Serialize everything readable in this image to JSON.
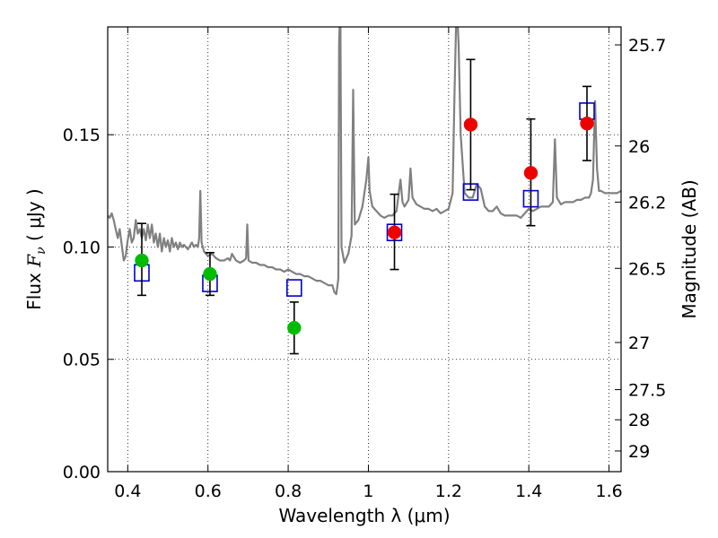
{
  "chart_data": {
    "type": "scatter",
    "xlabel": "Wavelength  λ (μm)",
    "ylabel_prefix": "Flux  ",
    "ylabel_symbol": "F",
    "ylabel_sub": "ν",
    "ylabel_unit": "  ( μJy )",
    "y2label": "Magnitude (AB)",
    "xlim": [
      0.35,
      1.63
    ],
    "ylim": [
      0.0,
      0.198
    ],
    "grid": true,
    "x_ticks": [
      {
        "value": 0.4,
        "label": "0.4"
      },
      {
        "value": 0.6,
        "label": "0.6"
      },
      {
        "value": 0.8,
        "label": "0.8"
      },
      {
        "value": 1.0,
        "label": "1"
      },
      {
        "value": 1.2,
        "label": "1.2"
      },
      {
        "value": 1.4,
        "label": "1.4"
      },
      {
        "value": 1.6,
        "label": "1.6"
      }
    ],
    "y_ticks": [
      {
        "value": 0.0,
        "label": "0.00"
      },
      {
        "value": 0.05,
        "label": "0.05"
      },
      {
        "value": 0.1,
        "label": "0.10"
      },
      {
        "value": 0.15,
        "label": "0.15"
      }
    ],
    "y2_ticks": [
      {
        "flux": 0.19,
        "label": "25.7"
      },
      {
        "flux": 0.145,
        "label": "26"
      },
      {
        "flux": 0.12,
        "label": "26.2"
      },
      {
        "flux": 0.0905,
        "label": "26.5"
      },
      {
        "flux": 0.0575,
        "label": "27"
      },
      {
        "flux": 0.0365,
        "label": "27.5"
      },
      {
        "flux": 0.0231,
        "label": "28"
      },
      {
        "flux": 0.0092,
        "label": "29"
      }
    ],
    "series": [
      {
        "name": "model-spectrum",
        "kind": "line",
        "color": "#808080",
        "points": [
          [
            0.35,
            0.114
          ],
          [
            0.355,
            0.113
          ],
          [
            0.36,
            0.115
          ],
          [
            0.365,
            0.112
          ],
          [
            0.37,
            0.108
          ],
          [
            0.375,
            0.104
          ],
          [
            0.38,
            0.108
          ],
          [
            0.385,
            0.101
          ],
          [
            0.39,
            0.094
          ],
          [
            0.395,
            0.096
          ],
          [
            0.4,
            0.103
          ],
          [
            0.405,
            0.108
          ],
          [
            0.41,
            0.102
          ],
          [
            0.415,
            0.104
          ],
          [
            0.42,
            0.112
          ],
          [
            0.425,
            0.106
          ],
          [
            0.43,
            0.108
          ],
          [
            0.435,
            0.104
          ],
          [
            0.44,
            0.108
          ],
          [
            0.445,
            0.103
          ],
          [
            0.45,
            0.11
          ],
          [
            0.455,
            0.104
          ],
          [
            0.46,
            0.11
          ],
          [
            0.465,
            0.102
          ],
          [
            0.47,
            0.106
          ],
          [
            0.475,
            0.1
          ],
          [
            0.48,
            0.106
          ],
          [
            0.485,
            0.098
          ],
          [
            0.49,
            0.104
          ],
          [
            0.495,
            0.1
          ],
          [
            0.5,
            0.103
          ],
          [
            0.505,
            0.098
          ],
          [
            0.51,
            0.104
          ],
          [
            0.515,
            0.1
          ],
          [
            0.52,
            0.102
          ],
          [
            0.525,
            0.099
          ],
          [
            0.53,
            0.102
          ],
          [
            0.535,
            0.1
          ],
          [
            0.54,
            0.101
          ],
          [
            0.55,
            0.099
          ],
          [
            0.56,
            0.102
          ],
          [
            0.565,
            0.1
          ],
          [
            0.57,
            0.101
          ],
          [
            0.575,
            0.1
          ],
          [
            0.578,
            0.104
          ],
          [
            0.581,
            0.125
          ],
          [
            0.584,
            0.102
          ],
          [
            0.59,
            0.098
          ],
          [
            0.6,
            0.096
          ],
          [
            0.61,
            0.097
          ],
          [
            0.62,
            0.095
          ],
          [
            0.63,
            0.094
          ],
          [
            0.64,
            0.094
          ],
          [
            0.65,
            0.095
          ],
          [
            0.655,
            0.094
          ],
          [
            0.66,
            0.097
          ],
          [
            0.663,
            0.096
          ],
          [
            0.67,
            0.094
          ],
          [
            0.68,
            0.093
          ],
          [
            0.69,
            0.094
          ],
          [
            0.695,
            0.095
          ],
          [
            0.698,
            0.11
          ],
          [
            0.701,
            0.094
          ],
          [
            0.71,
            0.093
          ],
          [
            0.72,
            0.093
          ],
          [
            0.73,
            0.092
          ],
          [
            0.74,
            0.092
          ],
          [
            0.75,
            0.091
          ],
          [
            0.76,
            0.091
          ],
          [
            0.77,
            0.09
          ],
          [
            0.78,
            0.09
          ],
          [
            0.79,
            0.089
          ],
          [
            0.8,
            0.09
          ],
          [
            0.81,
            0.089
          ],
          [
            0.82,
            0.088
          ],
          [
            0.83,
            0.088
          ],
          [
            0.84,
            0.087
          ],
          [
            0.85,
            0.087
          ],
          [
            0.86,
            0.086
          ],
          [
            0.87,
            0.085
          ],
          [
            0.88,
            0.085
          ],
          [
            0.89,
            0.084
          ],
          [
            0.9,
            0.083
          ],
          [
            0.91,
            0.083
          ],
          [
            0.915,
            0.08
          ],
          [
            0.92,
            0.079
          ],
          [
            0.925,
            0.086
          ],
          [
            0.927,
            0.19
          ],
          [
            0.93,
            0.21
          ],
          [
            0.933,
            0.1
          ],
          [
            0.94,
            0.093
          ],
          [
            0.95,
            0.097
          ],
          [
            0.958,
            0.105
          ],
          [
            0.962,
            0.17
          ],
          [
            0.966,
            0.11
          ],
          [
            0.975,
            0.112
          ],
          [
            0.985,
            0.118
          ],
          [
            0.995,
            0.13
          ],
          [
            1.0,
            0.14
          ],
          [
            1.003,
            0.125
          ],
          [
            1.01,
            0.118
          ],
          [
            1.02,
            0.116
          ],
          [
            1.03,
            0.114
          ],
          [
            1.04,
            0.113
          ],
          [
            1.05,
            0.114
          ],
          [
            1.06,
            0.114
          ],
          [
            1.07,
            0.116
          ],
          [
            1.08,
            0.13
          ],
          [
            1.085,
            0.12
          ],
          [
            1.09,
            0.118
          ],
          [
            1.1,
            0.121
          ],
          [
            1.105,
            0.135
          ],
          [
            1.11,
            0.122
          ],
          [
            1.12,
            0.119
          ],
          [
            1.13,
            0.118
          ],
          [
            1.14,
            0.117
          ],
          [
            1.15,
            0.117
          ],
          [
            1.16,
            0.116
          ],
          [
            1.17,
            0.117
          ],
          [
            1.18,
            0.115
          ],
          [
            1.19,
            0.116
          ],
          [
            1.2,
            0.117
          ],
          [
            1.21,
            0.124
          ],
          [
            1.215,
            0.17
          ],
          [
            1.22,
            0.21
          ],
          [
            1.225,
            0.19
          ],
          [
            1.23,
            0.15
          ],
          [
            1.24,
            0.124
          ],
          [
            1.25,
            0.122
          ],
          [
            1.26,
            0.122
          ],
          [
            1.27,
            0.128
          ],
          [
            1.28,
            0.126
          ],
          [
            1.29,
            0.118
          ],
          [
            1.3,
            0.116
          ],
          [
            1.31,
            0.116
          ],
          [
            1.32,
            0.118
          ],
          [
            1.33,
            0.115
          ],
          [
            1.34,
            0.114
          ],
          [
            1.35,
            0.114
          ],
          [
            1.36,
            0.114
          ],
          [
            1.37,
            0.114
          ],
          [
            1.38,
            0.113
          ],
          [
            1.39,
            0.115
          ],
          [
            1.4,
            0.117
          ],
          [
            1.41,
            0.116
          ],
          [
            1.42,
            0.117
          ],
          [
            1.43,
            0.118
          ],
          [
            1.44,
            0.118
          ],
          [
            1.45,
            0.118
          ],
          [
            1.46,
            0.12
          ],
          [
            1.465,
            0.148
          ],
          [
            1.47,
            0.122
          ],
          [
            1.48,
            0.119
          ],
          [
            1.49,
            0.12
          ],
          [
            1.5,
            0.12
          ],
          [
            1.51,
            0.12
          ],
          [
            1.52,
            0.121
          ],
          [
            1.53,
            0.121
          ],
          [
            1.54,
            0.122
          ],
          [
            1.55,
            0.122
          ],
          [
            1.555,
            0.124
          ],
          [
            1.56,
            0.13
          ],
          [
            1.565,
            0.165
          ],
          [
            1.57,
            0.135
          ],
          [
            1.575,
            0.125
          ],
          [
            1.58,
            0.125
          ],
          [
            1.59,
            0.124
          ],
          [
            1.6,
            0.124
          ],
          [
            1.61,
            0.124
          ],
          [
            1.62,
            0.124
          ],
          [
            1.63,
            0.125
          ]
        ]
      },
      {
        "name": "model-photometry",
        "kind": "open-square",
        "color": "#0000cc",
        "x": [
          0.435,
          0.605,
          0.815,
          1.065,
          1.255,
          1.405,
          1.545
        ],
        "y": [
          0.0885,
          0.0838,
          0.0818,
          0.1065,
          0.1245,
          0.1215,
          0.1605
        ]
      },
      {
        "name": "observed-optical",
        "kind": "filled-circle",
        "color": "#00bb00",
        "x": [
          0.435,
          0.605,
          0.815
        ],
        "y": [
          0.094,
          0.088,
          0.064
        ],
        "yerr_low": [
          0.0785,
          0.0785,
          0.0525
        ],
        "yerr_high": [
          0.1105,
          0.0975,
          0.0755
        ]
      },
      {
        "name": "observed-nir",
        "kind": "filled-circle",
        "color": "#ee0000",
        "x": [
          1.065,
          1.255,
          1.405,
          1.545
        ],
        "y": [
          0.1065,
          0.1545,
          0.133,
          0.155
        ],
        "yerr_low": [
          0.09,
          0.1255,
          0.1095,
          0.1385
        ],
        "yerr_high": [
          0.1235,
          0.1835,
          0.157,
          0.1715
        ]
      }
    ]
  }
}
